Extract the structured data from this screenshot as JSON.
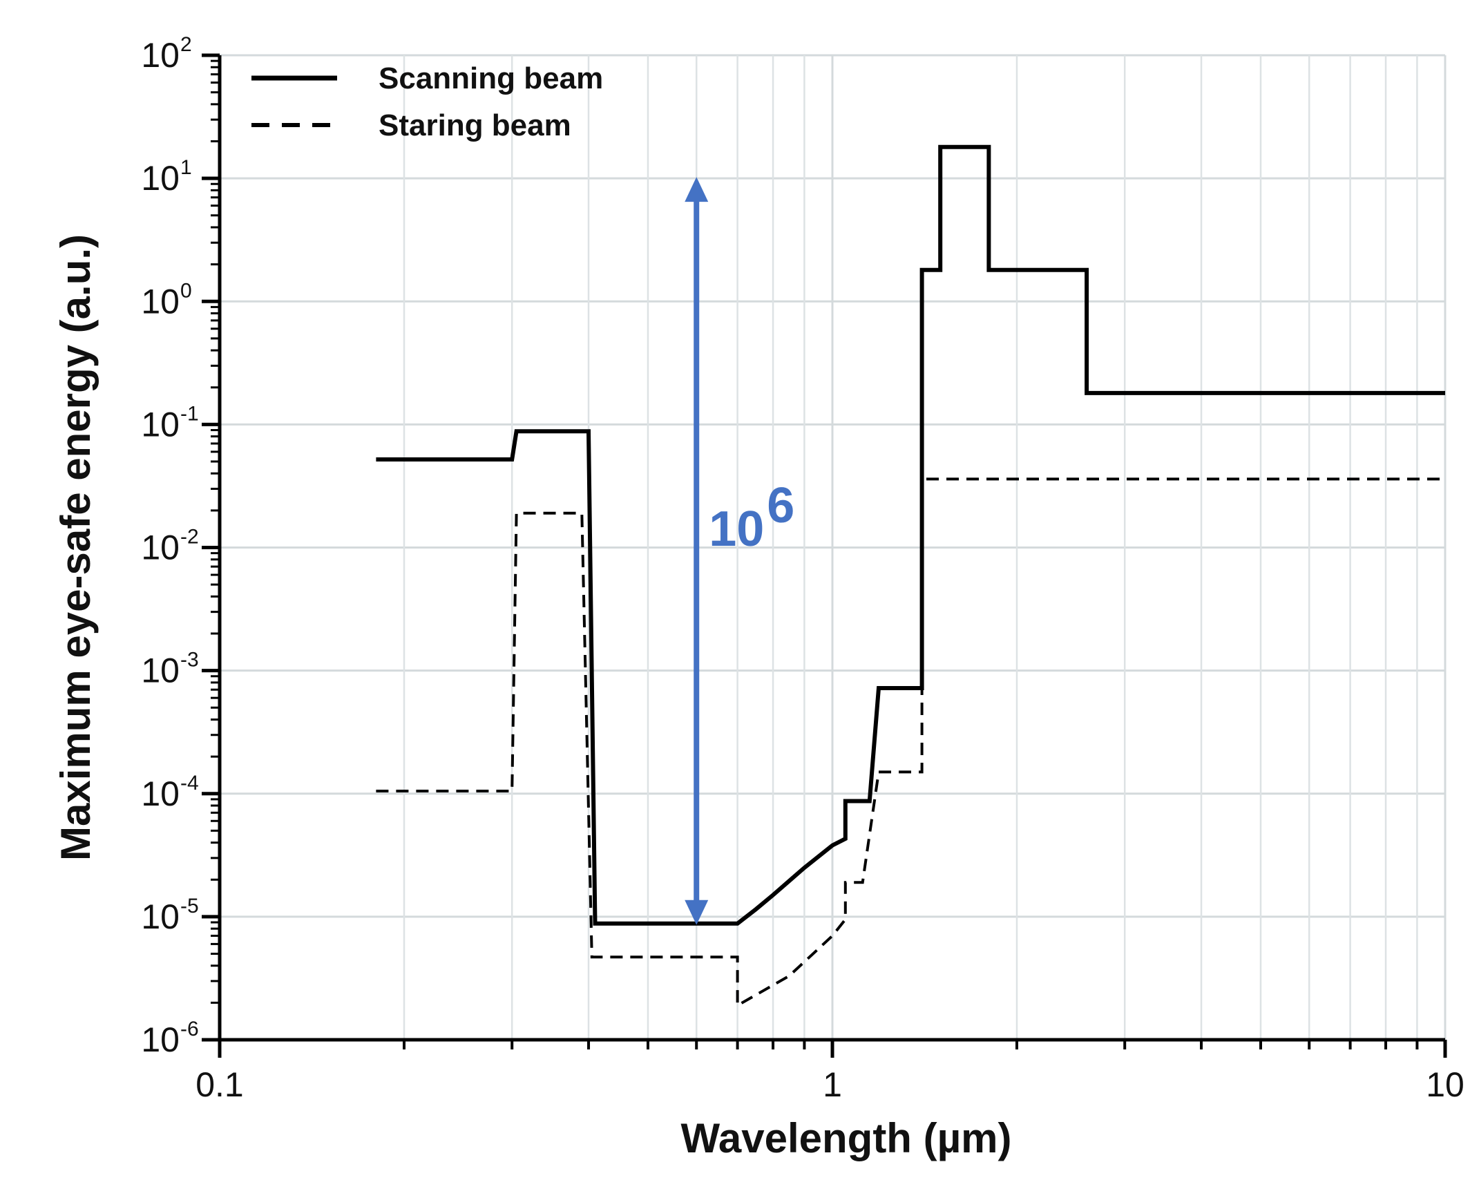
{
  "chart_data": {
    "type": "line",
    "title": "",
    "xlabel": "Wavelength (µm)",
    "ylabel": "Maximum eye-safe energy (a.u.)",
    "x_scale": "log",
    "y_scale": "log",
    "xlim": [
      0.1,
      10
    ],
    "ylim": [
      1e-06,
      100
    ],
    "grid": true,
    "legend_position": "top-left",
    "x_ticks": [
      {
        "value": 0.1,
        "label": "0.1"
      },
      {
        "value": 1,
        "label": "1"
      },
      {
        "value": 10,
        "label": "10"
      }
    ],
    "y_ticks": [
      {
        "value": 1e-06,
        "base": "10",
        "exp": "-6"
      },
      {
        "value": 1e-05,
        "base": "10",
        "exp": "-5"
      },
      {
        "value": 0.0001,
        "base": "10",
        "exp": "-4"
      },
      {
        "value": 0.001,
        "base": "10",
        "exp": "-3"
      },
      {
        "value": 0.01,
        "base": "10",
        "exp": "-2"
      },
      {
        "value": 0.1,
        "base": "10",
        "exp": "-1"
      },
      {
        "value": 1,
        "base": "10",
        "exp": "0"
      },
      {
        "value": 10,
        "base": "10",
        "exp": "1"
      },
      {
        "value": 100,
        "base": "10",
        "exp": "2"
      }
    ],
    "series": [
      {
        "name": "Scanning beam",
        "style": "solid",
        "color": "#000000",
        "points": [
          [
            0.18,
            0.052
          ],
          [
            0.3,
            0.052
          ],
          [
            0.305,
            0.088
          ],
          [
            0.4,
            0.088
          ],
          [
            0.41,
            8.8e-06
          ],
          [
            0.7,
            8.8e-06
          ],
          [
            0.75,
            1.15e-05
          ],
          [
            0.8,
            1.5e-05
          ],
          [
            0.9,
            2.5e-05
          ],
          [
            1.0,
            3.8e-05
          ],
          [
            1.05,
            4.3e-05
          ],
          [
            1.05,
            8.7e-05
          ],
          [
            1.15,
            8.7e-05
          ],
          [
            1.19,
            0.00072
          ],
          [
            1.4,
            0.00072
          ],
          [
            1.4,
            1.8
          ],
          [
            1.5,
            1.8
          ],
          [
            1.5,
            18
          ],
          [
            1.8,
            18
          ],
          [
            1.8,
            1.8
          ],
          [
            2.6,
            1.8
          ],
          [
            2.6,
            0.18
          ],
          [
            10,
            0.18
          ]
        ]
      },
      {
        "name": "Staring beam",
        "style": "dashed",
        "color": "#000000",
        "points": [
          [
            0.18,
            0.000105
          ],
          [
            0.3,
            0.000105
          ],
          [
            0.305,
            0.019
          ],
          [
            0.39,
            0.019
          ],
          [
            0.405,
            4.7e-06
          ],
          [
            0.7,
            4.7e-06
          ],
          [
            0.7,
            1.9e-06
          ],
          [
            0.85,
            3.3e-06
          ],
          [
            1.0,
            7e-06
          ],
          [
            1.05,
            9.5e-06
          ],
          [
            1.05,
            1.9e-05
          ],
          [
            1.12,
            1.9e-05
          ],
          [
            1.19,
            0.00015
          ],
          [
            1.4,
            0.00015
          ],
          [
            1.4,
            0.036
          ],
          [
            10,
            0.036
          ]
        ]
      }
    ],
    "annotations": [
      {
        "type": "double-arrow",
        "x": 0.6,
        "y_from": 8.8e-06,
        "y_to": 10,
        "color": "#4472C4",
        "label_base": "10",
        "label_exp": "6"
      }
    ]
  }
}
